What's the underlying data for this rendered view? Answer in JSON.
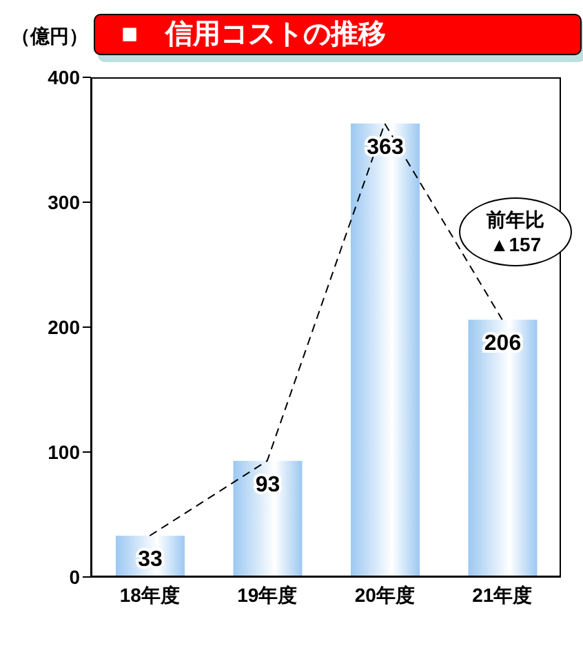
{
  "chart_data": {
    "type": "bar",
    "title": "■　信用コストの推移",
    "ylabel": "（億円）",
    "categories": [
      "18年度",
      "19年度",
      "20年度",
      "21年度"
    ],
    "series": [
      {
        "color": "#9cc8f2",
        "values": [
          33,
          93,
          363,
          206
        ],
        "value_labels": [
          "33",
          "93",
          "363",
          "206"
        ]
      },
      {
        "type": "line",
        "color": "#000000",
        "line_style": "dashed",
        "marker": "none",
        "values": [
          33,
          93,
          363,
          206
        ]
      }
    ],
    "ylim": [
      0,
      400
    ],
    "yticks": [
      0,
      100,
      200,
      300,
      400
    ],
    "grid": false,
    "legend": false,
    "annotations": [
      "前年比\n▲157"
    ]
  }
}
